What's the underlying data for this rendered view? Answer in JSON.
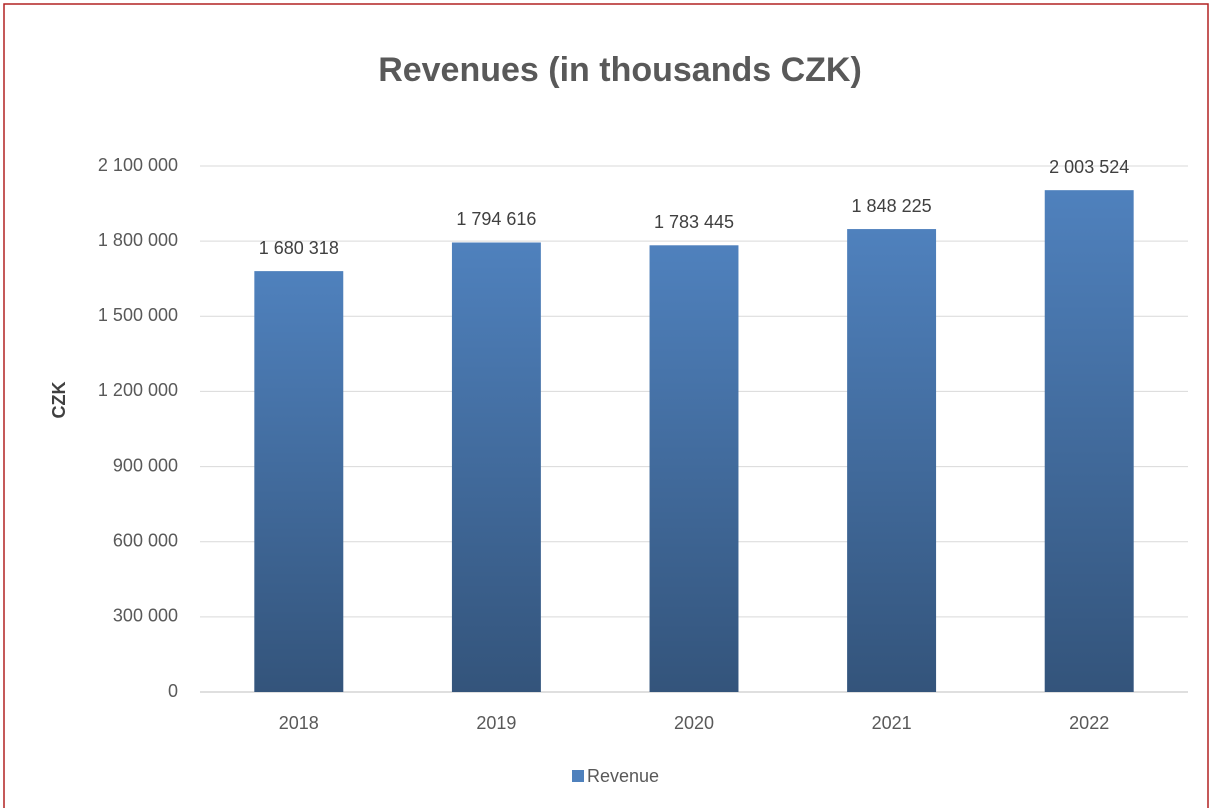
{
  "chart_data": {
    "type": "bar",
    "title": "Revenues (in thousands CZK)",
    "y_label": "CZK",
    "categories": [
      "2018",
      "2019",
      "2020",
      "2021",
      "2022"
    ],
    "series": [
      {
        "name": "Revenue",
        "color": "#4f81bd",
        "values": [
          1680318,
          1794616,
          1783445,
          1848225,
          2003524
        ],
        "value_labels": [
          "1 680 318",
          "1 794 616",
          "1 783 445",
          "1 848 225",
          "2 003 524"
        ]
      }
    ],
    "ylim": [
      0,
      2100000
    ],
    "yticks": [
      0,
      {
        "value": 300000,
        "label": "300 000"
      },
      {
        "value": 600000,
        "label": "600 000"
      },
      {
        "value": 900000,
        "label": "900 000"
      },
      {
        "value": 1200000,
        "label": "1 200 000"
      },
      {
        "value": 1500000,
        "label": "1 500 000"
      },
      {
        "value": 1800000,
        "label": "1 800 000"
      },
      {
        "value": 2100000,
        "label": "2 100 000"
      }
    ],
    "grid": true,
    "legend": "bottom"
  }
}
